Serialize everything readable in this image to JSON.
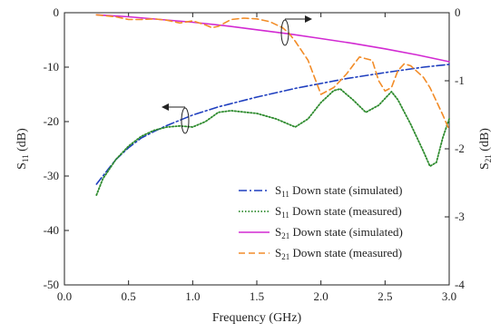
{
  "chart_data": {
    "type": "line",
    "xlabel": "Frequency (GHz)",
    "xlim": [
      0.0,
      3.0
    ],
    "x_ticks": [
      0.0,
      0.5,
      1.0,
      1.5,
      2.0,
      2.5,
      3.0
    ],
    "x_tick_labels": [
      "0.0",
      "0.5",
      "1.0",
      "1.5",
      "2.0",
      "2.5",
      "3.0"
    ],
    "y_left": {
      "label_main": "S",
      "label_sub": "11",
      "label_unit": " (dB)",
      "ylim": [
        -50,
        0
      ],
      "ticks": [
        0,
        -10,
        -20,
        -30,
        -40,
        -50
      ],
      "tick_labels": [
        "0",
        "-10",
        "-20",
        "-30",
        "-40",
        "-50"
      ]
    },
    "y_right": {
      "label_main": "S",
      "label_sub": "21",
      "label_unit": " (dB)",
      "ylim": [
        -4,
        0
      ],
      "ticks": [
        0,
        -1,
        -2,
        -3,
        -4
      ],
      "tick_labels": [
        "0",
        "-1",
        "-2",
        "-3",
        "-4"
      ]
    },
    "grid": false,
    "legend_position": "lower-right",
    "series": [
      {
        "legend_main": "S",
        "legend_sub": "11",
        "legend_rest": " Down state (simulated)",
        "axis": "left",
        "color": "#1f3fbf",
        "style": "dashdot",
        "x": [
          0.25,
          0.4,
          0.5,
          0.6,
          0.7,
          0.8,
          1.0,
          1.2,
          1.5,
          1.8,
          2.0,
          2.2,
          2.5,
          2.8,
          3.0
        ],
        "y": [
          -31.5,
          -27,
          -24.8,
          -23,
          -21.8,
          -20.7,
          -18.8,
          -17.3,
          -15.5,
          -13.9,
          -13.0,
          -12.1,
          -11.0,
          -10.0,
          -9.5
        ]
      },
      {
        "legend_main": "S",
        "legend_sub": "11",
        "legend_rest": " Down state (measured)",
        "axis": "left",
        "color": "#2e8b2e",
        "style": "dotted",
        "x": [
          0.25,
          0.3,
          0.4,
          0.5,
          0.6,
          0.7,
          0.8,
          0.9,
          1.0,
          1.1,
          1.2,
          1.3,
          1.5,
          1.65,
          1.8,
          1.9,
          2.0,
          2.1,
          2.15,
          2.25,
          2.35,
          2.45,
          2.55,
          2.6,
          2.7,
          2.8,
          2.85,
          2.9,
          2.95,
          3.0
        ],
        "y": [
          -33.5,
          -30.5,
          -27,
          -24.5,
          -22.7,
          -21.6,
          -21,
          -20.8,
          -21,
          -20,
          -18.3,
          -18,
          -18.5,
          -19.5,
          -21.0,
          -19.5,
          -16.5,
          -14.3,
          -14,
          -16,
          -18.3,
          -17,
          -14.5,
          -16,
          -20.5,
          -25.5,
          -28.2,
          -27.5,
          -23,
          -19.5
        ]
      },
      {
        "legend_main": "S",
        "legend_sub": "21",
        "legend_rest": " Down state (simulated)",
        "axis": "right",
        "color": "#d22ad2",
        "style": "solid",
        "x": [
          0.25,
          0.5,
          0.75,
          1.0,
          1.25,
          1.5,
          1.75,
          2.0,
          2.25,
          2.5,
          2.75,
          3.0
        ],
        "y": [
          -0.03,
          -0.06,
          -0.1,
          -0.14,
          -0.19,
          -0.25,
          -0.31,
          -0.38,
          -0.45,
          -0.53,
          -0.62,
          -0.72
        ]
      },
      {
        "legend_main": "S",
        "legend_sub": "21",
        "legend_rest": " Down state (measured)",
        "axis": "right",
        "color": "#f28c28",
        "style": "dashed",
        "x": [
          0.25,
          0.4,
          0.5,
          0.6,
          0.7,
          0.8,
          0.9,
          1.0,
          1.1,
          1.15,
          1.2,
          1.3,
          1.4,
          1.5,
          1.6,
          1.7,
          1.75,
          1.8,
          1.9,
          1.95,
          2.0,
          2.1,
          2.2,
          2.3,
          2.4,
          2.45,
          2.5,
          2.55,
          2.6,
          2.65,
          2.7,
          2.8,
          2.85,
          2.9,
          2.95,
          3.0
        ],
        "y": [
          -0.03,
          -0.06,
          -0.1,
          -0.1,
          -0.09,
          -0.11,
          -0.15,
          -0.12,
          -0.18,
          -0.22,
          -0.2,
          -0.1,
          -0.08,
          -0.09,
          -0.13,
          -0.22,
          -0.3,
          -0.42,
          -0.7,
          -0.95,
          -1.2,
          -1.1,
          -0.9,
          -0.65,
          -0.7,
          -1.0,
          -1.15,
          -1.1,
          -0.85,
          -0.75,
          -0.78,
          -0.95,
          -1.1,
          -1.3,
          -1.5,
          -1.72
        ]
      }
    ]
  }
}
